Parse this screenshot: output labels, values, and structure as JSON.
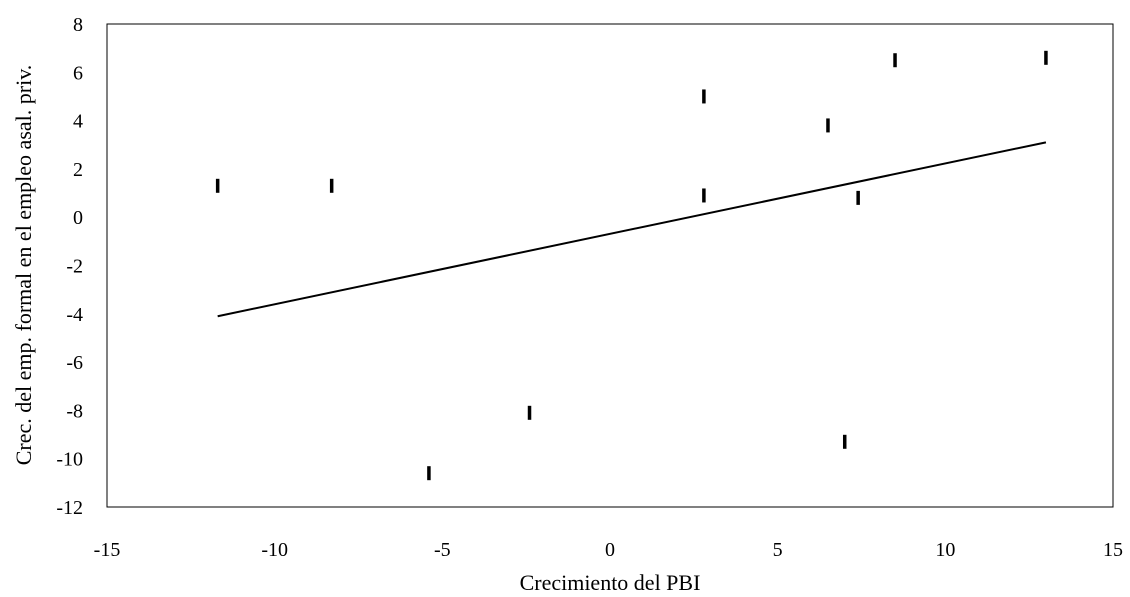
{
  "chart_data": {
    "type": "scatter",
    "title": "",
    "xlabel": "Crecimiento del PBI",
    "ylabel": "Crec. del emp. formal en el empleo asal. priv.",
    "xlim": [
      -15,
      15
    ],
    "ylim": [
      -12,
      8
    ],
    "xticks": [
      "-15",
      "-10",
      "-5",
      "0",
      "5",
      "10",
      "15"
    ],
    "yticks": [
      "-12",
      "-10",
      "-8",
      "-6",
      "-4",
      "-2",
      "0",
      "2",
      "4",
      "6",
      "8"
    ],
    "grid": false,
    "legend": "none",
    "marker": "vertical-dash",
    "points": [
      {
        "x": -11.7,
        "y": 1.3
      },
      {
        "x": -8.3,
        "y": 1.3
      },
      {
        "x": -5.4,
        "y": -10.6
      },
      {
        "x": -2.4,
        "y": -8.1
      },
      {
        "x": 2.8,
        "y": 5.0
      },
      {
        "x": 2.8,
        "y": 0.9
      },
      {
        "x": 6.5,
        "y": 3.8
      },
      {
        "x": 7.0,
        "y": -9.3
      },
      {
        "x": 7.4,
        "y": 0.8
      },
      {
        "x": 8.5,
        "y": 6.5
      },
      {
        "x": 13.0,
        "y": 6.6
      }
    ],
    "trendline": {
      "x": [
        -11.7,
        13.0
      ],
      "y": [
        -4.1,
        3.1
      ]
    },
    "colors": {
      "marker": "#000000",
      "trendline": "#000000",
      "frame": "#000000"
    }
  }
}
